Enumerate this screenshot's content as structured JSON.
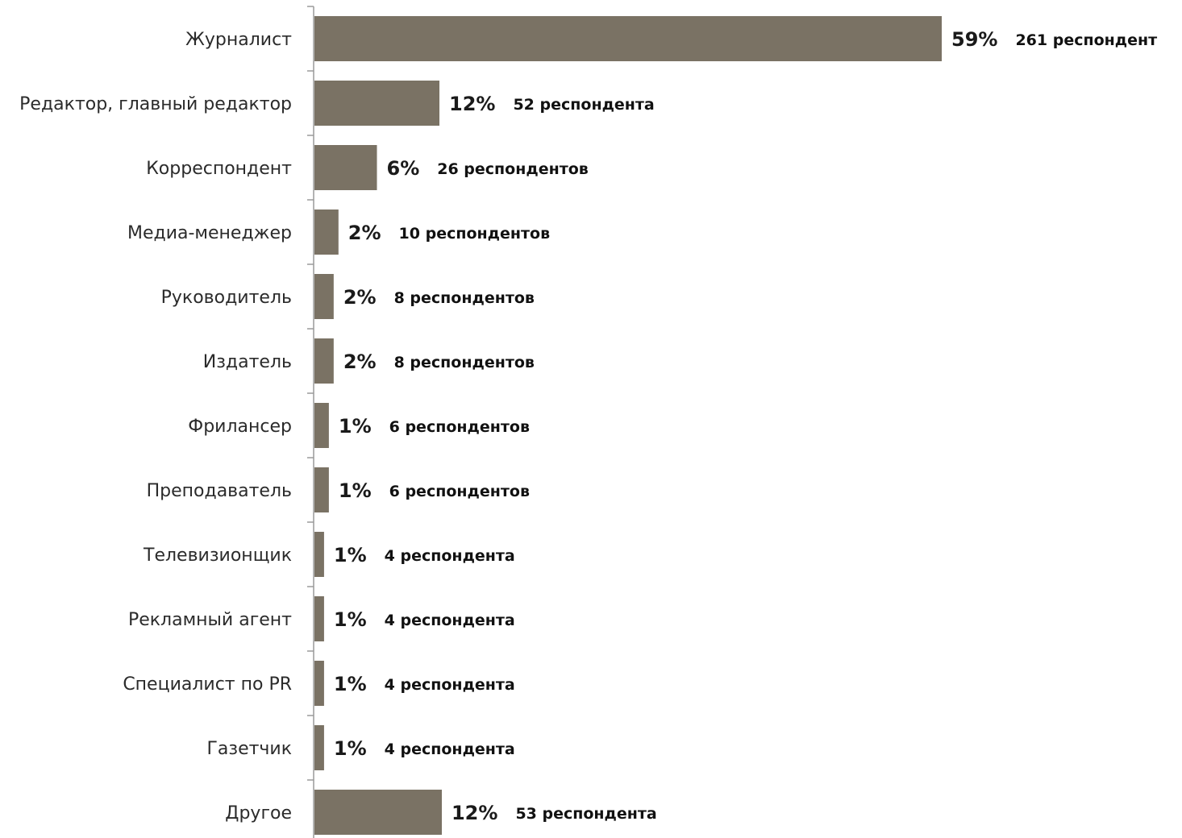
{
  "chart_data": {
    "type": "bar",
    "orientation": "horizontal",
    "bar_color": "#7a7264",
    "axis_color": "#9a9a9a",
    "categories": [
      "Журналист",
      "Редактор, главный редактор",
      "Корреспондент",
      "Медиа-менеджер",
      "Руководитель",
      "Издатель",
      "Фрилансер",
      "Преподаватель",
      "Телевизионщик",
      "Рекламный агент",
      "Специалист по PR",
      "Газетчик",
      "Другое"
    ],
    "values": [
      261,
      52,
      26,
      10,
      8,
      8,
      6,
      6,
      4,
      4,
      4,
      4,
      53
    ],
    "percent_labels": [
      "59%",
      "12%",
      "6%",
      "2%",
      "2%",
      "2%",
      "1%",
      "1%",
      "1%",
      "1%",
      "1%",
      "1%",
      "12%"
    ],
    "respondent_labels": [
      "261 респондент",
      "52 респондента",
      "26 респондентов",
      "10 респондентов",
      "8 респондентов",
      "8 респондентов",
      "6 респондентов",
      "6 респондентов",
      "4 респондента",
      "4 респондента",
      "4 респондента",
      "4 респондента",
      "53 респондента"
    ],
    "title": "",
    "xlabel": "",
    "ylabel": "",
    "grid": false,
    "legend": "none"
  }
}
